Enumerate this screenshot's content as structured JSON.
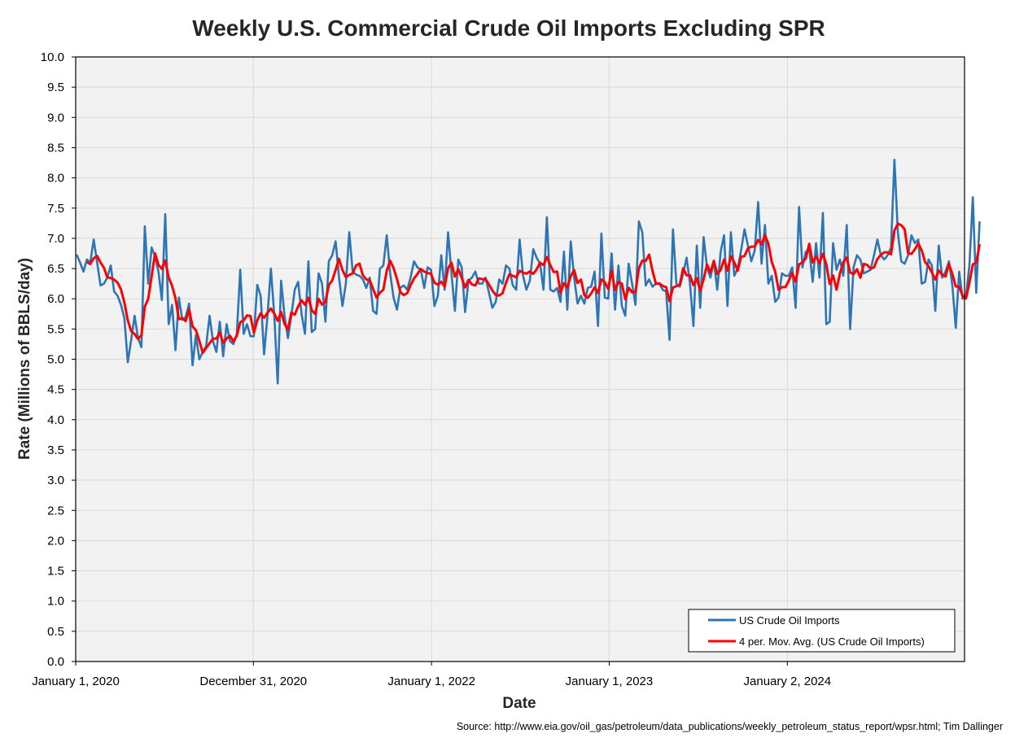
{
  "chart_data": {
    "type": "line",
    "title": "Weekly U.S. Commercial Crude Oil Imports Excluding SPR",
    "xlabel": "Date",
    "ylabel": "Rate (Millions of BBLS/day)",
    "source": "Source: http://www.eia.gov/oil_gas/petroleum/data_publications/weekly_petroleum_status_report/wpsr.html; Tim Dallinger",
    "ylim": [
      0,
      10
    ],
    "ytick_step": 0.5,
    "xlim": [
      "2020-01-01",
      "2024-12-31"
    ],
    "xticks": [
      {
        "date": "2020-01-01",
        "label": "January 1, 2020"
      },
      {
        "date": "2020-12-31",
        "label": "December 31, 2020"
      },
      {
        "date": "2022-01-01",
        "label": "January 1, 2022"
      },
      {
        "date": "2023-01-01",
        "label": "January 1, 2023"
      },
      {
        "date": "2024-01-02",
        "label": "January 2, 2024"
      }
    ],
    "grid": true,
    "legend_position": "bottom-right",
    "colors": {
      "imports": "#2e75b6",
      "moving_avg": "#ff0000",
      "plot_bg": "#f2f2f2",
      "grid": "#d9d9d9"
    },
    "series": [
      {
        "name": "US Crude Oil Imports",
        "color": "#2e75b6",
        "start": "2020-01-03",
        "step_days": 7,
        "values": [
          6.73,
          6.6,
          6.45,
          6.65,
          6.6,
          6.98,
          6.6,
          6.22,
          6.25,
          6.35,
          6.55,
          6.12,
          6.05,
          5.9,
          5.68,
          4.95,
          5.32,
          5.72,
          5.35,
          5.2,
          7.2,
          6.25,
          6.85,
          6.7,
          6.45,
          5.98,
          7.4,
          5.58,
          5.9,
          5.15,
          6.02,
          5.65,
          5.7,
          5.92,
          4.9,
          5.4,
          5.0,
          5.12,
          5.22,
          5.72,
          5.3,
          5.12,
          5.62,
          5.05,
          5.58,
          5.3,
          5.25,
          5.42,
          6.48,
          5.42,
          5.58,
          5.38,
          5.38,
          6.23,
          6.05,
          5.08,
          5.72,
          6.5,
          5.72,
          4.6,
          6.3,
          5.72,
          5.35,
          5.72,
          6.15,
          6.28,
          5.75,
          5.42,
          6.62,
          5.45,
          5.5,
          6.42,
          6.25,
          5.62,
          6.62,
          6.72,
          6.95,
          6.35,
          5.88,
          6.25,
          7.1,
          6.45,
          6.4,
          6.38,
          6.32,
          6.18,
          6.35,
          5.8,
          5.75,
          6.5,
          6.55,
          7.05,
          6.42,
          6.02,
          5.82,
          6.18,
          6.22,
          6.15,
          6.35,
          6.62,
          6.52,
          6.48,
          6.18,
          6.52,
          6.48,
          5.88,
          6.05,
          6.72,
          6.15,
          7.1,
          6.42,
          5.8,
          6.65,
          6.52,
          5.78,
          6.3,
          6.35,
          6.45,
          6.25,
          6.25,
          6.35,
          6.1,
          5.85,
          5.95,
          6.32,
          6.25,
          6.55,
          6.5,
          6.22,
          6.15,
          6.98,
          6.38,
          6.15,
          6.3,
          6.82,
          6.68,
          6.58,
          6.15,
          7.35,
          6.15,
          6.12,
          6.18,
          5.95,
          6.78,
          5.82,
          6.95,
          6.35,
          5.92,
          6.05,
          5.92,
          6.18,
          6.2,
          6.45,
          5.55,
          7.08,
          6.02,
          6.0,
          6.75,
          5.82,
          6.55,
          5.88,
          5.72,
          6.58,
          6.25,
          5.9,
          7.28,
          7.1,
          6.22,
          6.32,
          6.2,
          6.25,
          6.25,
          6.15,
          6.12,
          5.32,
          7.15,
          6.25,
          6.2,
          6.42,
          6.68,
          6.25,
          5.55,
          6.88,
          5.85,
          7.02,
          6.52,
          6.35,
          6.62,
          6.15,
          6.78,
          7.05,
          5.88,
          7.1,
          6.38,
          6.5,
          6.8,
          7.15,
          6.88,
          6.62,
          6.8,
          7.6,
          6.58,
          7.22,
          6.25,
          6.38,
          5.95,
          6.02,
          6.42,
          6.38,
          6.38,
          6.52,
          5.85,
          7.52,
          6.52,
          6.78,
          6.82,
          6.28,
          6.92,
          6.35,
          7.42,
          5.58,
          5.62,
          6.92,
          6.48,
          6.65,
          6.38,
          7.22,
          5.5,
          6.52,
          6.72,
          6.65,
          6.42,
          6.45,
          6.48,
          6.72,
          6.98,
          6.72,
          6.65,
          6.72,
          6.85,
          8.3,
          7.1,
          6.62,
          6.58,
          6.72,
          7.05,
          6.92,
          6.98,
          6.25,
          6.28,
          6.65,
          6.55,
          5.8,
          6.88,
          6.35,
          6.45,
          6.62,
          6.22,
          5.52,
          6.45,
          6.0,
          6.05,
          6.55,
          7.68,
          6.1,
          7.28
        ]
      },
      {
        "name": "4 per. Mov. Avg. (US Crude Oil Imports)",
        "color": "#ff0000",
        "kind": "moving_average",
        "period": 4,
        "of": "US Crude Oil Imports"
      }
    ]
  }
}
